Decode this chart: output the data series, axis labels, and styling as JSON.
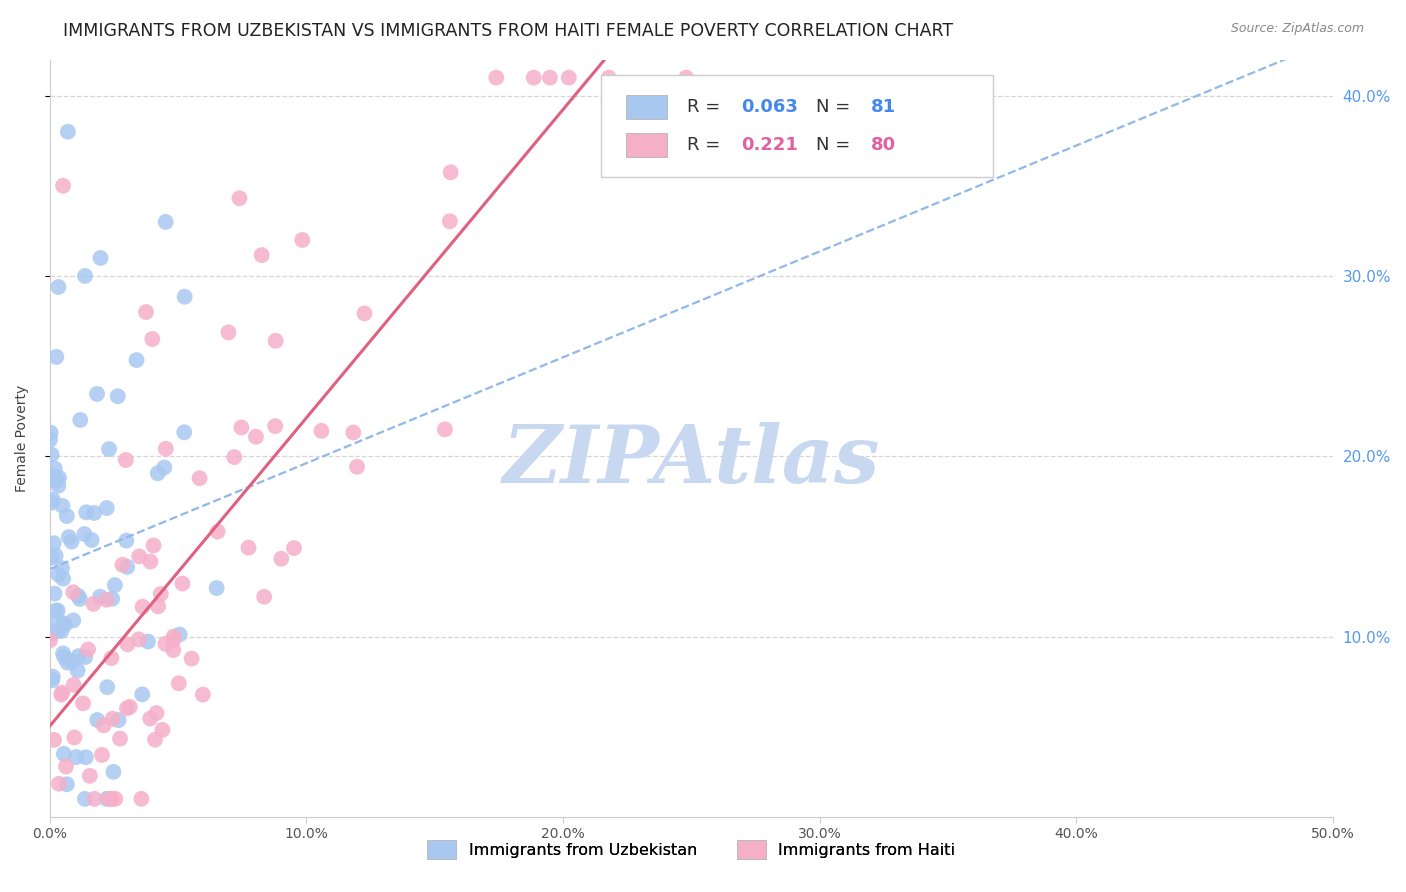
{
  "title": "IMMIGRANTS FROM UZBEKISTAN VS IMMIGRANTS FROM HAITI FEMALE POVERTY CORRELATION CHART",
  "source": "Source: ZipAtlas.com",
  "ylabel": "Female Poverty",
  "xlim": [
    0.0,
    0.5
  ],
  "ylim": [
    0.0,
    0.42
  ],
  "xtick_labels": [
    "0.0%",
    "10.0%",
    "20.0%",
    "30.0%",
    "40.0%",
    "50.0%"
  ],
  "xtick_vals": [
    0.0,
    0.1,
    0.2,
    0.3,
    0.4,
    0.5
  ],
  "ytick_labels": [
    "10.0%",
    "20.0%",
    "30.0%",
    "40.0%"
  ],
  "ytick_vals": [
    0.1,
    0.2,
    0.3,
    0.4
  ],
  "series": [
    {
      "name": "Immigrants from Uzbekistan",
      "R": 0.063,
      "N": 81,
      "color": "#a8c8f0",
      "line_color": "#90b8e8",
      "line_style": "--",
      "seed": 42
    },
    {
      "name": "Immigrants from Haiti",
      "R": 0.221,
      "N": 80,
      "color": "#f5b0c8",
      "line_color": "#e06080",
      "line_style": "-",
      "seed": 7
    }
  ],
  "watermark": "ZIPAtlas",
  "watermark_color": "#c8d8f0",
  "background_color": "#ffffff",
  "grid_color": "#cccccc",
  "title_fontsize": 12.5,
  "axis_label_fontsize": 10,
  "tick_fontsize": 10,
  "legend_fontsize": 13,
  "right_ytick_color": "#5599ee"
}
